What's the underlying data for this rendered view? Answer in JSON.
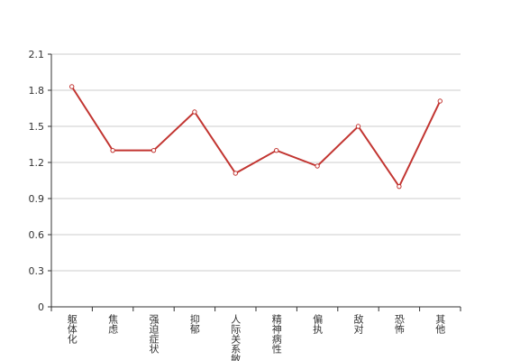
{
  "chart_data": {
    "type": "line",
    "categories": [
      "躯体化",
      "焦虑",
      "强迫症状",
      "抑郁",
      "人际关系敏感",
      "精神病性",
      "偏执",
      "敌对",
      "恐怖",
      "其他"
    ],
    "values": [
      1.83,
      1.3,
      1.3,
      1.62,
      1.11,
      1.3,
      1.17,
      1.5,
      1.0,
      1.71
    ],
    "color": "#c23531",
    "ylim": [
      0,
      2.1
    ],
    "yticks": [
      0,
      0.3,
      0.6,
      0.9,
      1.2,
      1.5,
      1.8,
      2.1
    ],
    "grid": true
  }
}
